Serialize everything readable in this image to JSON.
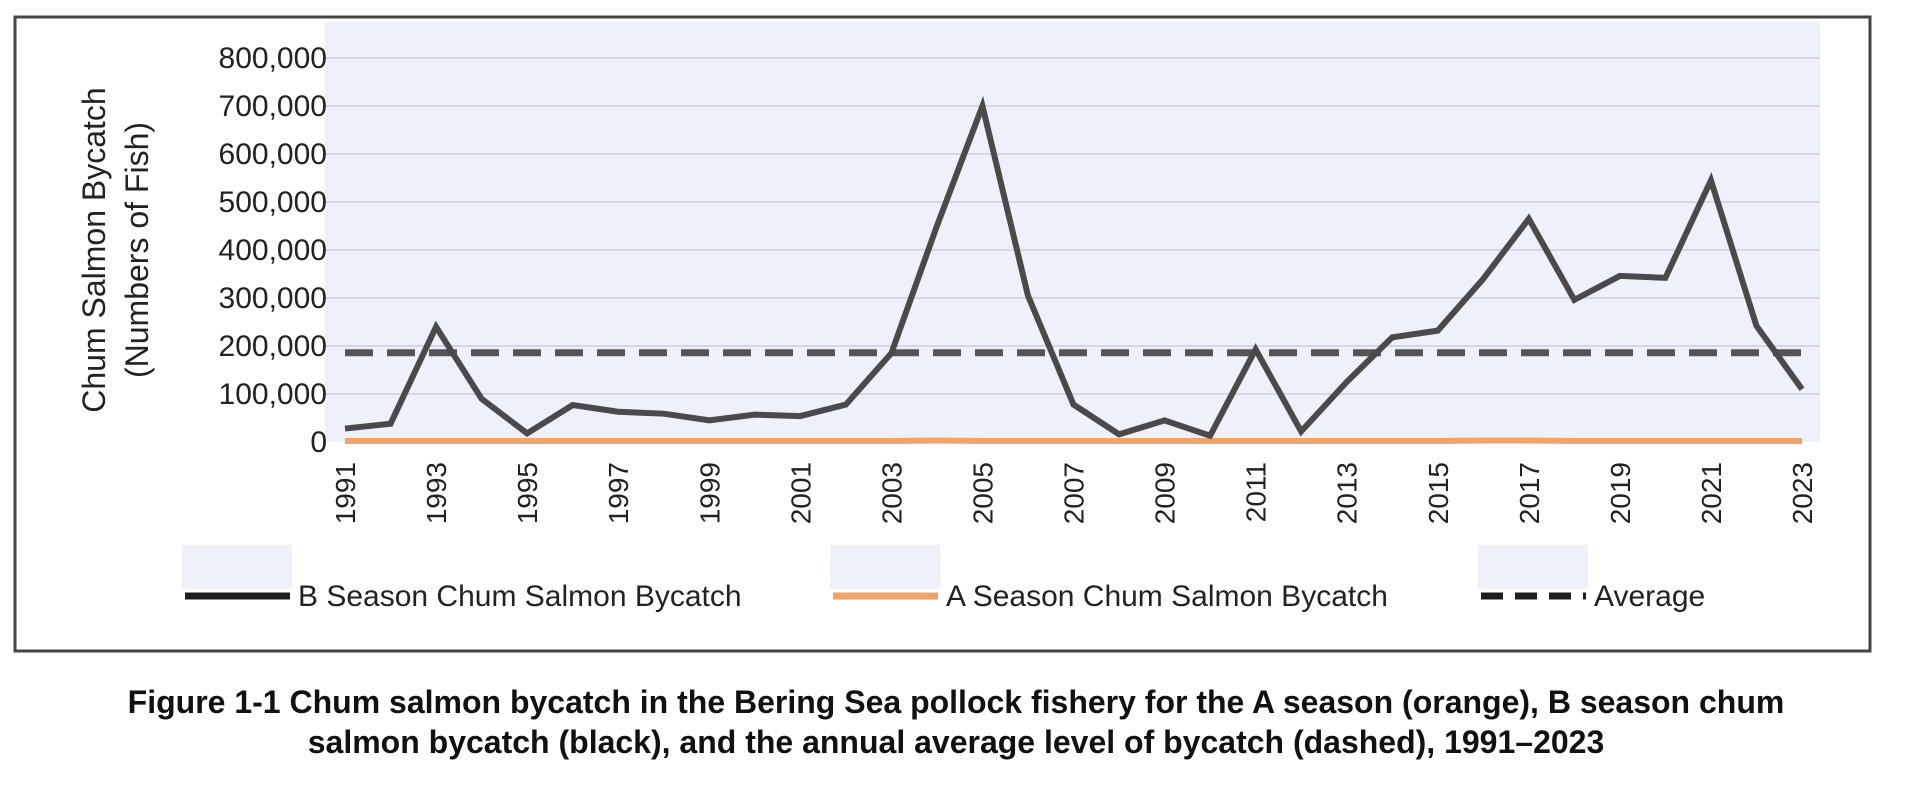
{
  "chart_data": {
    "type": "line",
    "title": "",
    "xlabel": "",
    "ylabel": "Chum Salmon Bycatch (Numbers of Fish)",
    "ylabel_lines": [
      "Chum Salmon Bycatch",
      "(Numbers of Fish)"
    ],
    "ylim": [
      0,
      800000
    ],
    "yticks": [
      0,
      100000,
      200000,
      300000,
      400000,
      500000,
      600000,
      700000,
      800000
    ],
    "ytick_labels": [
      "0",
      "100,000",
      "200,000",
      "300,000",
      "400,000",
      "500,000",
      "600,000",
      "700,000",
      "800,000"
    ],
    "x": [
      1991,
      1992,
      1993,
      1994,
      1995,
      1996,
      1997,
      1998,
      1999,
      2000,
      2001,
      2002,
      2003,
      2004,
      2005,
      2006,
      2007,
      2008,
      2009,
      2010,
      2011,
      2012,
      2013,
      2014,
      2015,
      2016,
      2017,
      2018,
      2019,
      2020,
      2021,
      2022,
      2023
    ],
    "xtick_labels": [
      "1991",
      "1993",
      "1995",
      "1997",
      "1999",
      "2001",
      "2003",
      "2005",
      "2007",
      "2009",
      "2011",
      "2013",
      "2015",
      "2017",
      "2019",
      "2021",
      "2023"
    ],
    "grid": true,
    "legend_position": "bottom",
    "series": [
      {
        "name": "B Season Chum Salmon Bycatch",
        "color": "#4a4a4a",
        "style": "solid",
        "values": [
          28000,
          38000,
          240000,
          90000,
          18000,
          77000,
          63000,
          59000,
          45000,
          57000,
          54000,
          78000,
          185000,
          450000,
          700000,
          305000,
          78000,
          16000,
          45000,
          13000,
          193000,
          22000,
          125000,
          218000,
          232000,
          340000,
          465000,
          296000,
          346000,
          342000,
          545000,
          242000,
          110000
        ]
      },
      {
        "name": "A Season Chum Salmon Bycatch",
        "color": "#f0a468",
        "style": "solid",
        "values": [
          2000,
          2000,
          2000,
          2000,
          2000,
          2000,
          2000,
          2000,
          2000,
          2000,
          2000,
          2000,
          2000,
          3000,
          2000,
          2000,
          2000,
          2000,
          2000,
          2000,
          2000,
          2000,
          2000,
          2000,
          2000,
          3000,
          3000,
          2000,
          2000,
          2000,
          2000,
          2000,
          2000
        ]
      },
      {
        "name": "Average",
        "color": "#555555",
        "style": "dashed",
        "values": [
          186000,
          186000,
          186000,
          186000,
          186000,
          186000,
          186000,
          186000,
          186000,
          186000,
          186000,
          186000,
          186000,
          186000,
          186000,
          186000,
          186000,
          186000,
          186000,
          186000,
          186000,
          186000,
          186000,
          186000,
          186000,
          186000,
          186000,
          186000,
          186000,
          186000,
          186000,
          186000,
          186000
        ]
      }
    ],
    "colors": {
      "plot_background": "#eef0fa",
      "gridline": "#d5d8e4",
      "frame": "#444444"
    }
  },
  "caption": {
    "line1": "Figure 1-1 Chum salmon bycatch in the Bering Sea pollock fishery for the A season (orange), B season chum",
    "line2": "salmon bycatch (black), and the annual average level of bycatch (dashed), 1991–2023"
  }
}
